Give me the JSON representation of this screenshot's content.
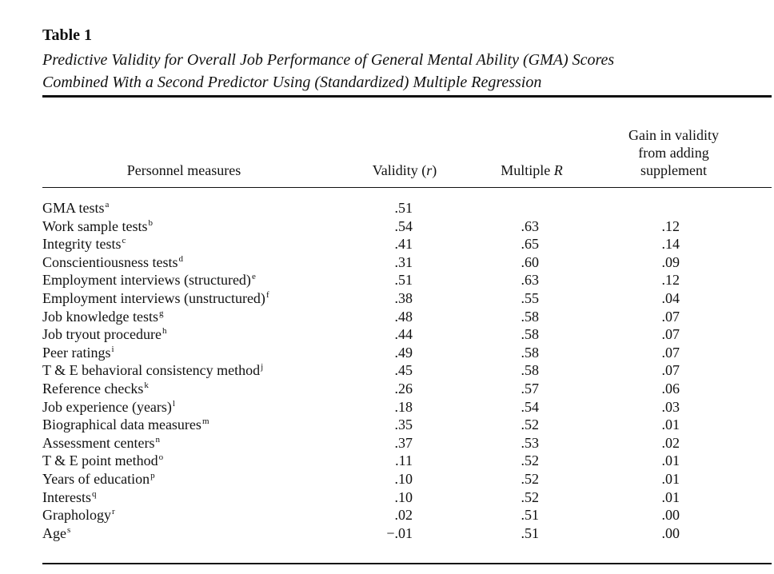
{
  "table": {
    "label": "Table 1",
    "title_lines": [
      "Predictive Validity for Overall Job Performance of General Mental Ability (GMA) Scores",
      "Combined With a Second Predictor Using (Standardized) Multiple Regression"
    ],
    "headers": {
      "measure": "Personnel measures",
      "validity": "Validity (",
      "validity_r": "r",
      "validity_close": ")",
      "multiple_r": "Multiple ",
      "multiple_r_italic": "R",
      "gain_lines": [
        "Gain in validity",
        "from adding",
        "supplement"
      ]
    },
    "rows": [
      {
        "name": "GMA tests",
        "note": "a",
        "validity": ".51",
        "multiple_r": "",
        "gain": ""
      },
      {
        "name": "Work sample tests",
        "note": "b",
        "validity": ".54",
        "multiple_r": ".63",
        "gain": ".12"
      },
      {
        "name": "Integrity tests",
        "note": "c",
        "validity": ".41",
        "multiple_r": ".65",
        "gain": ".14"
      },
      {
        "name": "Conscientiousness tests",
        "note": "d",
        "validity": ".31",
        "multiple_r": ".60",
        "gain": ".09"
      },
      {
        "name": "Employment interviews (structured)",
        "note": "e",
        "validity": ".51",
        "multiple_r": ".63",
        "gain": ".12"
      },
      {
        "name": "Employment interviews (unstructured)",
        "note": "f",
        "validity": ".38",
        "multiple_r": ".55",
        "gain": ".04"
      },
      {
        "name": "Job knowledge tests",
        "note": "g",
        "validity": ".48",
        "multiple_r": ".58",
        "gain": ".07"
      },
      {
        "name": "Job tryout procedure",
        "note": "h",
        "validity": ".44",
        "multiple_r": ".58",
        "gain": ".07"
      },
      {
        "name": "Peer ratings",
        "note": "i",
        "validity": ".49",
        "multiple_r": ".58",
        "gain": ".07"
      },
      {
        "name": "T & E behavioral consistency method",
        "note": "j",
        "validity": ".45",
        "multiple_r": ".58",
        "gain": ".07"
      },
      {
        "name": "Reference checks",
        "note": "k",
        "validity": ".26",
        "multiple_r": ".57",
        "gain": ".06"
      },
      {
        "name": "Job experience (years)",
        "note": "l",
        "validity": ".18",
        "multiple_r": ".54",
        "gain": ".03"
      },
      {
        "name": "Biographical data measures",
        "note": "m",
        "validity": ".35",
        "multiple_r": ".52",
        "gain": ".01"
      },
      {
        "name": "Assessment centers",
        "note": "n",
        "validity": ".37",
        "multiple_r": ".53",
        "gain": ".02"
      },
      {
        "name": "T & E point method",
        "note": "o",
        "validity": ".11",
        "multiple_r": ".52",
        "gain": ".01"
      },
      {
        "name": "Years of education",
        "note": "p",
        "validity": ".10",
        "multiple_r": ".52",
        "gain": ".01"
      },
      {
        "name": "Interests",
        "note": "q",
        "validity": ".10",
        "multiple_r": ".52",
        "gain": ".01"
      },
      {
        "name": "Graphology",
        "note": "r",
        "validity": ".02",
        "multiple_r": ".51",
        "gain": ".00"
      },
      {
        "name": "Age",
        "note": "s",
        "validity": "−.01",
        "multiple_r": ".51",
        "gain": ".00"
      }
    ]
  }
}
